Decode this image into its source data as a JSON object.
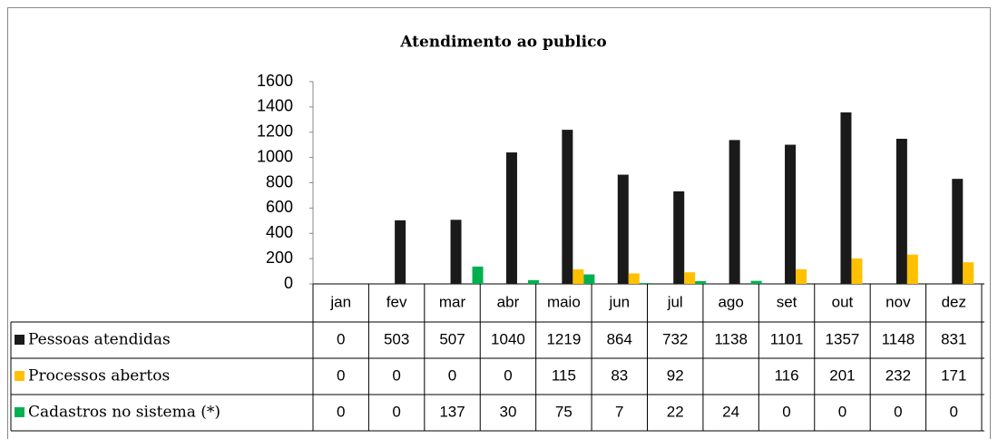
{
  "chart_data": {
    "type": "bar",
    "title": "Atendimento ao publico",
    "categories": [
      "jan",
      "fev",
      "mar",
      "abr",
      "maio",
      "jun",
      "jul",
      "ago",
      "set",
      "out",
      "nov",
      "dez"
    ],
    "series": [
      {
        "name": "Pessoas atendidas",
        "color": "#1a1a1a",
        "values": [
          0,
          503,
          507,
          1040,
          1219,
          864,
          732,
          1138,
          1101,
          1357,
          1148,
          831
        ]
      },
      {
        "name": "Processos abertos",
        "color": "#ffc000",
        "values": [
          0,
          0,
          0,
          0,
          115,
          83,
          92,
          null,
          116,
          201,
          232,
          171
        ]
      },
      {
        "name": "Cadastros no sistema (*)",
        "color": "#00b050",
        "values": [
          0,
          0,
          137,
          30,
          75,
          7,
          22,
          24,
          0,
          0,
          0,
          0
        ]
      }
    ],
    "ylim": [
      0,
      1600
    ],
    "yticks": [
      0,
      200,
      400,
      600,
      800,
      1000,
      1200,
      1400,
      1600
    ],
    "grid": false
  }
}
